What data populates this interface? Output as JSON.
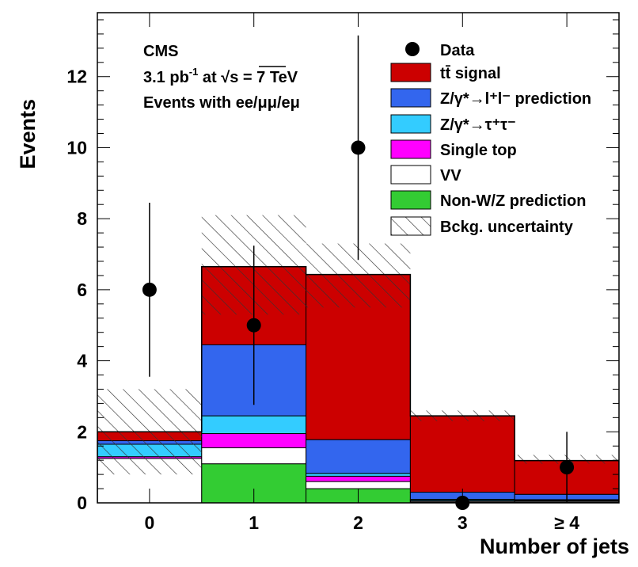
{
  "chart_data": {
    "type": "bar",
    "stacked": true,
    "categories": [
      "0",
      "1",
      "2",
      "3",
      "≥ 4"
    ],
    "xlabel": "Number of jets",
    "ylabel": "Events",
    "ylim": [
      0,
      13.8
    ],
    "yticks": [
      0,
      2,
      4,
      6,
      8,
      10,
      12
    ],
    "legend_position": "top-right",
    "annotations": [
      "CMS",
      "3.1 pb",
      "-1",
      " at ",
      "√",
      "s = 7 TeV",
      "Events with ee/μμ/eμ"
    ],
    "series": [
      {
        "name": "Non-W/Z prediction",
        "color": "#33cc33",
        "values": [
          0.0,
          1.1,
          0.4,
          0.02,
          0.02
        ]
      },
      {
        "name": "VV",
        "color": "#ffffff",
        "values": [
          1.25,
          0.45,
          0.2,
          0.03,
          0.03
        ]
      },
      {
        "name": "Single top",
        "color": "#ff00ff",
        "values": [
          0.05,
          0.4,
          0.15,
          0.02,
          0.02
        ]
      },
      {
        "name": "Z/γ*→τ⁺τ⁻",
        "color": "#33ccff",
        "values": [
          0.35,
          0.5,
          0.08,
          0.03,
          0.02
        ]
      },
      {
        "name": "Z/γ*→l⁺l⁻ prediction",
        "color": "#3366ee",
        "values": [
          0.1,
          2.0,
          0.95,
          0.2,
          0.15
        ]
      },
      {
        "name": "tt̄ signal",
        "color": "#cc0000",
        "values": [
          0.25,
          2.2,
          4.65,
          2.15,
          0.95
        ]
      }
    ],
    "data_points": {
      "name": "Data",
      "values": [
        6,
        5,
        10,
        0,
        1
      ],
      "err_low": [
        2.45,
        2.24,
        3.16,
        0,
        1.0
      ],
      "err_high": [
        2.45,
        2.24,
        3.16,
        0,
        1.0
      ]
    },
    "uncertainty": {
      "name": "Bckg. uncertainty",
      "low": [
        0.8,
        5.3,
        5.5,
        2.3,
        1.1
      ],
      "high": [
        3.2,
        8.1,
        7.3,
        2.6,
        1.35
      ]
    }
  },
  "legend": {
    "data": "Data",
    "tt": "tt̄ signal",
    "zll": "Z/γ*→l⁺l⁻ prediction",
    "ztt": "Z/γ*→τ⁺τ⁻",
    "st": "Single top",
    "vv": "VV",
    "nonwz": "Non-W/Z prediction",
    "unc": "Bckg. uncertainty"
  }
}
